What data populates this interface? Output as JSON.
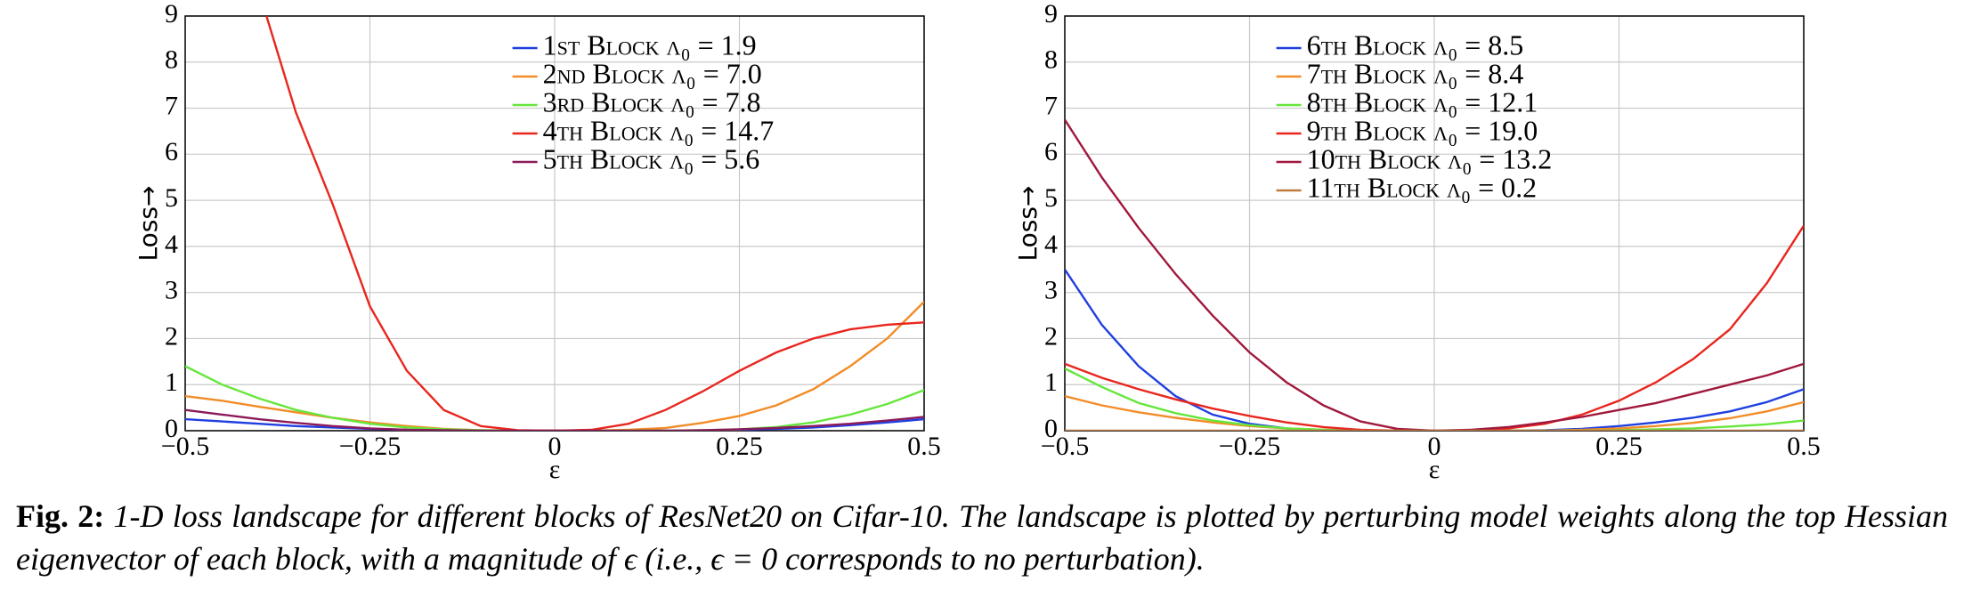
{
  "chart_data": [
    {
      "type": "line",
      "xlabel": "ε",
      "ylabel": "Loss→",
      "xlim": [
        -0.5,
        0.5
      ],
      "xticks": [
        {
          "value": -0.5,
          "label": "−0.5"
        },
        {
          "value": -0.25,
          "label": "−0.25"
        },
        0,
        0.25,
        0.5
      ],
      "ylim": [
        0,
        9
      ],
      "yticks": [
        0,
        1,
        2,
        3,
        4,
        5,
        6,
        7,
        8,
        9
      ],
      "grid": true,
      "legend": "upper right",
      "x": [
        -0.5,
        -0.45,
        -0.4,
        -0.35,
        -0.3,
        -0.25,
        -0.2,
        -0.15,
        -0.1,
        -0.05,
        0,
        0.05,
        0.1,
        0.15,
        0.2,
        0.25,
        0.3,
        0.35,
        0.4,
        0.45,
        0.5
      ],
      "series": [
        {
          "name": "1st Block λ₀ = 1.9",
          "color": "#1f3fe0",
          "values": [
            0.25,
            0.2,
            0.15,
            0.1,
            0.07,
            0.04,
            0.02,
            0.01,
            0,
            0,
            0,
            0,
            0,
            0,
            0,
            0.02,
            0.04,
            0.07,
            0.12,
            0.18,
            0.25
          ]
        },
        {
          "name": "2nd Block λ₀ = 7.0",
          "color": "#f28c28",
          "values": [
            0.75,
            0.65,
            0.52,
            0.4,
            0.28,
            0.18,
            0.1,
            0.04,
            0.01,
            0,
            0,
            0,
            0.02,
            0.06,
            0.17,
            0.32,
            0.55,
            0.9,
            1.4,
            2.0,
            2.8
          ]
        },
        {
          "name": "3rd Block λ₀ = 7.8",
          "color": "#66e63c",
          "values": [
            1.4,
            1.0,
            0.7,
            0.45,
            0.28,
            0.15,
            0.07,
            0.03,
            0.01,
            0,
            0,
            0,
            0,
            0,
            0.01,
            0.03,
            0.08,
            0.18,
            0.35,
            0.58,
            0.88
          ]
        },
        {
          "name": "4th Block λ₀ = 14.7",
          "color": "#e8261e",
          "x": [
            -0.39,
            -0.35,
            -0.3,
            -0.25,
            -0.2,
            -0.15,
            -0.1,
            -0.05,
            0,
            0.05,
            0.1,
            0.15,
            0.2,
            0.25,
            0.3,
            0.35,
            0.4,
            0.45,
            0.5
          ],
          "values": [
            9,
            6.9,
            4.9,
            2.7,
            1.3,
            0.45,
            0.1,
            0.01,
            0,
            0.02,
            0.15,
            0.45,
            0.85,
            1.3,
            1.7,
            2.0,
            2.2,
            2.3,
            2.35
          ]
        },
        {
          "name": "5th Block λ₀ = 5.6",
          "color": "#8b1a5a",
          "values": [
            0.45,
            0.35,
            0.25,
            0.17,
            0.1,
            0.05,
            0.02,
            0.01,
            0,
            0,
            0,
            0,
            0,
            0,
            0.01,
            0.03,
            0.06,
            0.1,
            0.15,
            0.22,
            0.3
          ]
        }
      ]
    },
    {
      "type": "line",
      "xlabel": "ε",
      "ylabel": "Loss→",
      "xlim": [
        -0.5,
        0.5
      ],
      "xticks": [
        {
          "value": -0.5,
          "label": "−0.5"
        },
        {
          "value": -0.25,
          "label": "−0.25"
        },
        0,
        0.25,
        0.5
      ],
      "ylim": [
        0,
        9
      ],
      "yticks": [
        0,
        1,
        2,
        3,
        4,
        5,
        6,
        7,
        8,
        9
      ],
      "grid": true,
      "legend": "upper right",
      "x": [
        -0.5,
        -0.45,
        -0.4,
        -0.35,
        -0.3,
        -0.25,
        -0.2,
        -0.15,
        -0.1,
        -0.05,
        0,
        0.05,
        0.1,
        0.15,
        0.2,
        0.25,
        0.3,
        0.35,
        0.4,
        0.45,
        0.5
      ],
      "series": [
        {
          "name": "6th Block λ₀ = 8.5",
          "color": "#1f3fe0",
          "values": [
            3.5,
            2.3,
            1.4,
            0.75,
            0.35,
            0.15,
            0.05,
            0.01,
            0,
            0,
            0,
            0,
            0,
            0.01,
            0.04,
            0.1,
            0.18,
            0.28,
            0.42,
            0.62,
            0.9
          ]
        },
        {
          "name": "7th Block λ₀ = 8.4",
          "color": "#f28c28",
          "values": [
            0.75,
            0.55,
            0.4,
            0.28,
            0.18,
            0.1,
            0.05,
            0.02,
            0,
            0,
            0,
            0,
            0,
            0,
            0.02,
            0.05,
            0.1,
            0.17,
            0.27,
            0.42,
            0.62
          ]
        },
        {
          "name": "8th Block λ₀ = 12.1",
          "color": "#66e63c",
          "values": [
            1.35,
            0.95,
            0.6,
            0.38,
            0.22,
            0.12,
            0.05,
            0.02,
            0,
            0,
            0,
            0,
            0,
            0,
            0,
            0.01,
            0.03,
            0.05,
            0.09,
            0.14,
            0.22
          ]
        },
        {
          "name": "9th Block λ₀ = 19.0",
          "color": "#e8261e",
          "values": [
            1.45,
            1.15,
            0.9,
            0.68,
            0.48,
            0.32,
            0.18,
            0.08,
            0.02,
            0,
            0,
            0,
            0.05,
            0.15,
            0.35,
            0.65,
            1.05,
            1.55,
            2.2,
            3.2,
            4.45
          ]
        },
        {
          "name": "10th Block λ₀ = 13.2",
          "color": "#a0183c",
          "values": [
            6.75,
            5.5,
            4.4,
            3.4,
            2.5,
            1.7,
            1.05,
            0.55,
            0.2,
            0.04,
            0,
            0.02,
            0.08,
            0.18,
            0.3,
            0.45,
            0.6,
            0.8,
            1.0,
            1.2,
            1.45
          ]
        },
        {
          "name": "11th Block λ₀ = 0.2",
          "color": "#c07a40",
          "values": [
            0,
            0,
            0,
            0,
            0,
            0,
            0,
            0,
            0,
            0,
            0,
            0,
            0,
            0,
            0,
            0,
            0,
            0,
            0,
            0,
            0
          ]
        }
      ]
    }
  ],
  "caption": {
    "label": "Fig. 2:",
    "text": "1-D loss landscape for different blocks of ResNet20 on Cifar-10. The landscape is plotted by perturbing model weights along the top Hessian eigenvector of each block, with a magnitude of ϵ (i.e., ϵ = 0 corresponds to no perturbation)."
  }
}
